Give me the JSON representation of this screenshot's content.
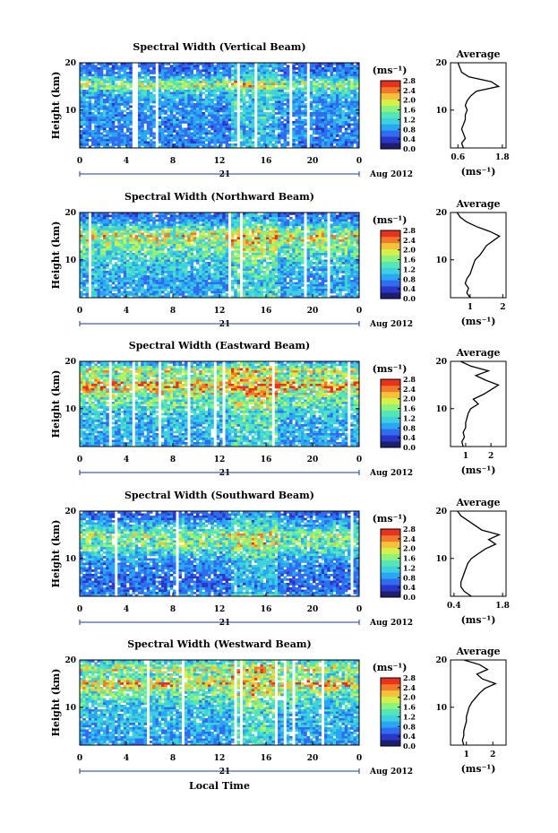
{
  "figure": {
    "xlabel_bottom": "Local Time",
    "date_label": "Aug 2012",
    "day_label": "21",
    "ylabel": "Height (km)",
    "colorbar_unit": "(ms⁻¹)",
    "average_unit": "(ms⁻¹)",
    "average_title": "Average",
    "colors": {
      "colormap": [
        "#1b1f6e",
        "#2a37c9",
        "#2f6cf0",
        "#2aa7f2",
        "#3fd0e0",
        "#55e6b8",
        "#8ff27a",
        "#d6f04a",
        "#f3c23a",
        "#f07a2a",
        "#e8321e"
      ]
    }
  },
  "chart_data": [
    {
      "type": "heatmap",
      "title": "Spectral Width (Vertical Beam)",
      "x_ticks": [
        "0",
        "4",
        "8",
        "12",
        "16",
        "20",
        "0"
      ],
      "xlim": [
        0,
        24
      ],
      "y_ticks": [
        "20",
        "10"
      ],
      "ylim": [
        2,
        20
      ],
      "colorbar_ticks": [
        "0.0",
        "0.4",
        "0.8",
        "1.2",
        "1.6",
        "2.0",
        "2.4",
        "2.8"
      ],
      "colorbar_range": [
        0,
        2.8
      ],
      "average_profile": {
        "x_ticks": [
          "0.6",
          "1.8"
        ],
        "xlim": [
          0.4,
          1.9
        ],
        "heights": [
          2,
          3,
          4,
          5,
          6,
          7,
          8,
          9,
          10,
          11,
          12,
          13,
          14,
          15,
          16,
          17,
          18,
          19,
          20
        ],
        "values": [
          0.75,
          0.7,
          0.8,
          0.75,
          0.7,
          0.75,
          0.8,
          0.8,
          0.85,
          0.8,
          0.85,
          0.95,
          1.1,
          1.7,
          1.5,
          0.9,
          0.7,
          0.65,
          0.6
        ]
      }
    },
    {
      "type": "heatmap",
      "title": "Spectral Width (Northward Beam)",
      "x_ticks": [
        "0",
        "4",
        "8",
        "12",
        "16",
        "20",
        "0"
      ],
      "xlim": [
        0,
        24
      ],
      "y_ticks": [
        "20",
        "10"
      ],
      "ylim": [
        2,
        20
      ],
      "colorbar_ticks": [
        "0.0",
        "0.4",
        "0.8",
        "1.2",
        "1.6",
        "2.0",
        "2.4",
        "2.8"
      ],
      "colorbar_range": [
        0,
        2.8
      ],
      "average_profile": {
        "x_ticks": [
          "1",
          "2"
        ],
        "xlim": [
          0.4,
          2.1
        ],
        "heights": [
          2,
          3,
          4,
          5,
          6,
          7,
          8,
          9,
          10,
          11,
          12,
          13,
          14,
          15,
          16,
          17,
          18,
          19,
          20
        ],
        "values": [
          1.0,
          0.9,
          0.95,
          0.85,
          0.9,
          1.0,
          1.05,
          1.1,
          1.15,
          1.3,
          1.4,
          1.5,
          1.7,
          1.9,
          1.6,
          1.2,
          0.9,
          0.7,
          0.6
        ]
      }
    },
    {
      "type": "heatmap",
      "title": "Spectral Width (Eastward Beam)",
      "x_ticks": [
        "0",
        "4",
        "8",
        "12",
        "16",
        "20",
        "0"
      ],
      "xlim": [
        0,
        24
      ],
      "y_ticks": [
        "20",
        "10"
      ],
      "ylim": [
        2,
        20
      ],
      "colorbar_ticks": [
        "0.0",
        "0.4",
        "0.8",
        "1.2",
        "1.6",
        "2.0",
        "2.4",
        "2.8"
      ],
      "colorbar_range": [
        0,
        2.8
      ],
      "average_profile": {
        "x_ticks": [
          "1",
          "2"
        ],
        "xlim": [
          0.4,
          2.6
        ],
        "heights": [
          2,
          3,
          4,
          5,
          6,
          7,
          8,
          9,
          10,
          11,
          12,
          13,
          14,
          15,
          16,
          17,
          18,
          19,
          20
        ],
        "values": [
          0.9,
          0.85,
          0.95,
          0.9,
          1.0,
          1.0,
          1.05,
          1.1,
          1.2,
          1.5,
          1.3,
          1.7,
          2.0,
          2.3,
          1.8,
          1.4,
          1.9,
          1.2,
          0.8
        ]
      }
    },
    {
      "type": "heatmap",
      "title": "Spectral Width (Southward Beam)",
      "x_ticks": [
        "0",
        "4",
        "8",
        "12",
        "16",
        "20",
        "0"
      ],
      "xlim": [
        0,
        24
      ],
      "y_ticks": [
        "20",
        "10"
      ],
      "ylim": [
        2,
        20
      ],
      "colorbar_ticks": [
        "0.0",
        "0.4",
        "0.8",
        "1.2",
        "1.6",
        "2.0",
        "2.4",
        "2.8"
      ],
      "colorbar_range": [
        0,
        2.8
      ],
      "average_profile": {
        "x_ticks": [
          "0.4",
          "1.8"
        ],
        "xlim": [
          0.3,
          1.9
        ],
        "heights": [
          2,
          3,
          4,
          5,
          6,
          7,
          8,
          9,
          10,
          11,
          12,
          13,
          14,
          15,
          16,
          17,
          18,
          19,
          20
        ],
        "values": [
          0.9,
          0.7,
          0.6,
          0.6,
          0.65,
          0.7,
          0.75,
          0.8,
          0.9,
          1.1,
          1.3,
          1.6,
          1.4,
          1.7,
          1.2,
          1.0,
          0.8,
          0.6,
          0.5
        ]
      }
    },
    {
      "type": "heatmap",
      "title": "Spectral Width (Westward Beam)",
      "x_ticks": [
        "0",
        "4",
        "8",
        "12",
        "16",
        "20",
        "0"
      ],
      "xlim": [
        0,
        24
      ],
      "y_ticks": [
        "20",
        "10"
      ],
      "ylim": [
        2,
        20
      ],
      "colorbar_ticks": [
        "0.0",
        "0.4",
        "0.8",
        "1.2",
        "1.6",
        "2.0",
        "2.4",
        "2.8"
      ],
      "colorbar_range": [
        0,
        2.8
      ],
      "average_profile": {
        "x_ticks": [
          "1",
          "2"
        ],
        "xlim": [
          0.4,
          2.5
        ],
        "heights": [
          2,
          3,
          4,
          5,
          6,
          7,
          8,
          9,
          10,
          11,
          12,
          13,
          14,
          15,
          16,
          17,
          18,
          19,
          20
        ],
        "values": [
          0.9,
          0.85,
          0.9,
          0.9,
          0.95,
          1.0,
          1.0,
          1.05,
          1.1,
          1.2,
          1.35,
          1.5,
          1.7,
          2.1,
          1.6,
          1.4,
          1.8,
          1.5,
          0.9
        ]
      }
    }
  ]
}
